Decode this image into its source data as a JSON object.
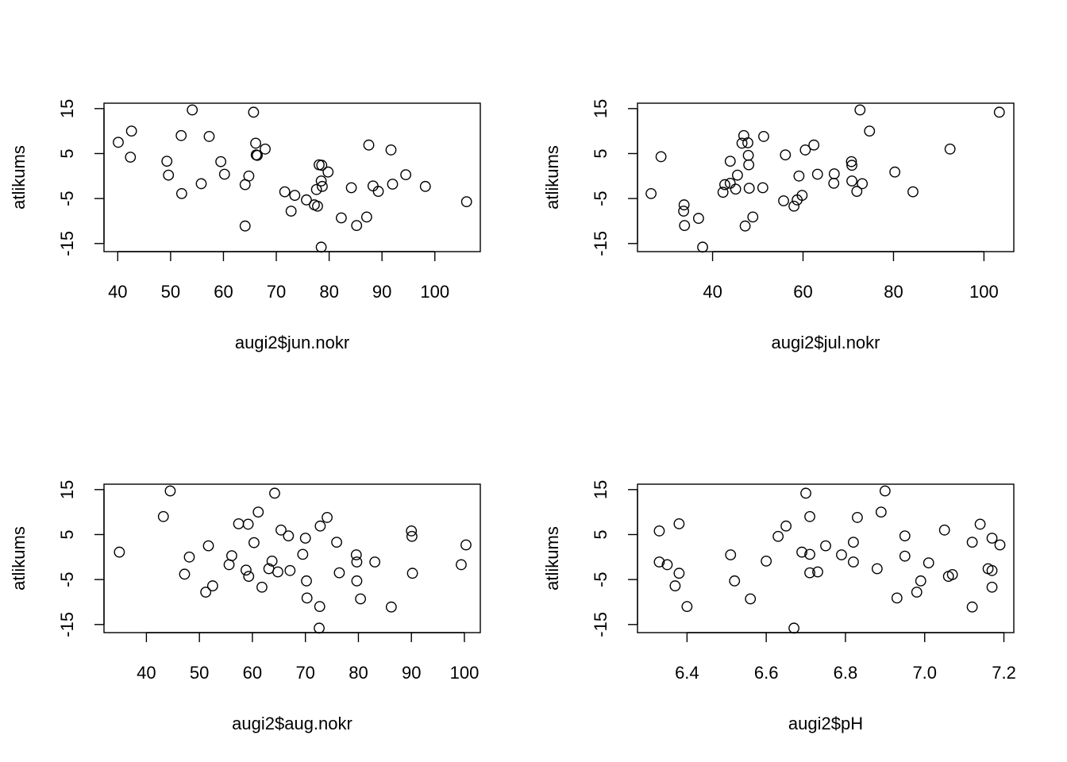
{
  "chart_data": [
    {
      "type": "scatter",
      "xlabel": "augi2$jun.nokr",
      "ylabel": "atlikums",
      "xlim": [
        37.4,
        108.6
      ],
      "ylim": [
        -16.8,
        16.2
      ],
      "x_ticks": [
        40,
        50,
        60,
        70,
        80,
        90,
        100
      ],
      "y_ticks": [
        -15,
        -5,
        5,
        15
      ],
      "points": [
        [
          40.1,
          7.5
        ],
        [
          42.6,
          10.0
        ],
        [
          42.4,
          4.2
        ],
        [
          49.3,
          3.3
        ],
        [
          49.6,
          0.2
        ],
        [
          52.0,
          9.0
        ],
        [
          52.1,
          -3.9
        ],
        [
          54.1,
          14.7
        ],
        [
          55.8,
          -1.7
        ],
        [
          57.3,
          8.8
        ],
        [
          59.5,
          3.2
        ],
        [
          60.2,
          0.4
        ],
        [
          64.1,
          -1.9
        ],
        [
          64.8,
          0.0
        ],
        [
          65.7,
          14.2
        ],
        [
          66.1,
          7.3
        ],
        [
          66.2,
          4.7
        ],
        [
          66.4,
          4.6
        ],
        [
          67.9,
          6.0
        ],
        [
          71.6,
          -3.5
        ],
        [
          72.8,
          -7.8
        ],
        [
          73.5,
          -4.3
        ],
        [
          75.7,
          -5.3
        ],
        [
          77.2,
          -6.4
        ],
        [
          77.6,
          -3.0
        ],
        [
          77.8,
          -6.7
        ],
        [
          78.1,
          2.5
        ],
        [
          78.5,
          -1.1
        ],
        [
          78.6,
          2.4
        ],
        [
          78.7,
          -2.3
        ],
        [
          79.8,
          0.9
        ],
        [
          82.3,
          -9.3
        ],
        [
          84.2,
          -2.6
        ],
        [
          85.2,
          -11.0
        ],
        [
          87.1,
          -9.1
        ],
        [
          87.5,
          6.9
        ],
        [
          88.3,
          -2.2
        ],
        [
          89.3,
          -3.4
        ],
        [
          91.7,
          5.8
        ],
        [
          92.0,
          -1.8
        ],
        [
          94.5,
          0.3
        ],
        [
          98.2,
          -2.3
        ],
        [
          106.0,
          -5.7
        ],
        [
          64.1,
          -11.1
        ],
        [
          78.5,
          -15.8
        ]
      ]
    },
    {
      "type": "scatter",
      "xlabel": "augi2$jul.nokr",
      "ylabel": "atlikums",
      "xlim": [
        23.4,
        106.6
      ],
      "ylim": [
        -16.8,
        16.2
      ],
      "x_ticks": [
        40,
        60,
        80,
        100
      ],
      "y_ticks": [
        -15,
        -5,
        5,
        15
      ],
      "points": [
        [
          26.4,
          -3.9
        ],
        [
          28.6,
          4.3
        ],
        [
          33.6,
          -7.8
        ],
        [
          33.7,
          -6.4
        ],
        [
          33.8,
          -11.0
        ],
        [
          36.9,
          -9.4
        ],
        [
          37.8,
          -15.8
        ],
        [
          42.3,
          -3.6
        ],
        [
          42.7,
          -1.9
        ],
        [
          43.9,
          -1.6
        ],
        [
          43.9,
          3.3
        ],
        [
          45.1,
          -2.9
        ],
        [
          45.5,
          0.2
        ],
        [
          46.5,
          7.3
        ],
        [
          46.9,
          9.0
        ],
        [
          47.2,
          -11.1
        ],
        [
          47.8,
          7.4
        ],
        [
          47.9,
          4.6
        ],
        [
          48.0,
          2.5
        ],
        [
          48.1,
          -2.7
        ],
        [
          48.9,
          -9.1
        ],
        [
          51.1,
          -2.6
        ],
        [
          51.3,
          8.8
        ],
        [
          55.7,
          -5.5
        ],
        [
          56.1,
          4.7
        ],
        [
          58.0,
          -6.7
        ],
        [
          58.7,
          -5.3
        ],
        [
          59.1,
          0.0
        ],
        [
          59.8,
          -4.3
        ],
        [
          60.5,
          5.8
        ],
        [
          62.4,
          6.9
        ],
        [
          63.2,
          0.4
        ],
        [
          66.8,
          -1.6
        ],
        [
          66.9,
          0.5
        ],
        [
          70.7,
          3.2
        ],
        [
          70.8,
          2.4
        ],
        [
          70.8,
          -1.1
        ],
        [
          71.9,
          -3.4
        ],
        [
          72.6,
          14.7
        ],
        [
          73.1,
          -1.7
        ],
        [
          74.7,
          10.0
        ],
        [
          80.3,
          0.9
        ],
        [
          84.3,
          -3.5
        ],
        [
          92.5,
          6.0
        ],
        [
          103.4,
          14.2
        ]
      ]
    },
    {
      "type": "scatter",
      "xlabel": "augi2$aug.nokr",
      "ylabel": "atlikums",
      "xlim": [
        32.0,
        103.0
      ],
      "ylim": [
        -16.8,
        16.2
      ],
      "x_ticks": [
        40,
        50,
        60,
        70,
        80,
        90,
        100
      ],
      "y_ticks": [
        -15,
        -5,
        5,
        15
      ],
      "points": [
        [
          34.9,
          1.1
        ],
        [
          43.2,
          9.0
        ],
        [
          44.5,
          14.7
        ],
        [
          47.2,
          -3.8
        ],
        [
          48.1,
          0.0
        ],
        [
          51.2,
          -7.8
        ],
        [
          51.7,
          2.5
        ],
        [
          52.5,
          -6.4
        ],
        [
          55.6,
          -1.7
        ],
        [
          56.1,
          0.3
        ],
        [
          57.4,
          7.4
        ],
        [
          58.8,
          -2.9
        ],
        [
          59.2,
          7.3
        ],
        [
          59.3,
          -4.3
        ],
        [
          60.3,
          3.2
        ],
        [
          61.1,
          10.0
        ],
        [
          61.8,
          -6.7
        ],
        [
          63.1,
          -2.6
        ],
        [
          63.7,
          -0.9
        ],
        [
          64.2,
          14.2
        ],
        [
          64.8,
          -3.3
        ],
        [
          65.4,
          6.0
        ],
        [
          66.8,
          4.7
        ],
        [
          67.1,
          -3.0
        ],
        [
          69.5,
          0.6
        ],
        [
          70.0,
          4.2
        ],
        [
          70.2,
          -5.3
        ],
        [
          70.3,
          -9.1
        ],
        [
          72.6,
          -15.8
        ],
        [
          72.7,
          -11.0
        ],
        [
          72.8,
          6.9
        ],
        [
          74.1,
          8.8
        ],
        [
          75.9,
          3.3
        ],
        [
          76.4,
          -3.5
        ],
        [
          79.6,
          0.5
        ],
        [
          79.7,
          -1.1
        ],
        [
          79.7,
          -5.3
        ],
        [
          80.4,
          -9.3
        ],
        [
          83.1,
          -1.1
        ],
        [
          86.2,
          -11.1
        ],
        [
          90.0,
          5.8
        ],
        [
          90.1,
          4.6
        ],
        [
          90.2,
          -3.6
        ],
        [
          99.4,
          -1.7
        ],
        [
          100.3,
          2.7
        ]
      ]
    },
    {
      "type": "scatter",
      "xlabel": "augi2$pH",
      "ylabel": "atlikums",
      "xlim": [
        6.275,
        7.225
      ],
      "ylim": [
        -16.8,
        16.2
      ],
      "x_ticks": [
        "6.4",
        "6.6",
        "6.8",
        "7.0",
        "7.2"
      ],
      "y_ticks": [
        -15,
        -5,
        5,
        15
      ],
      "points": [
        [
          6.33,
          5.8
        ],
        [
          6.33,
          -1.1
        ],
        [
          6.35,
          -1.7
        ],
        [
          6.37,
          -6.4
        ],
        [
          6.38,
          7.4
        ],
        [
          6.38,
          -3.6
        ],
        [
          6.4,
          -11.0
        ],
        [
          6.51,
          0.5
        ],
        [
          6.52,
          -5.3
        ],
        [
          6.56,
          -9.3
        ],
        [
          6.6,
          -0.9
        ],
        [
          6.63,
          4.6
        ],
        [
          6.65,
          6.9
        ],
        [
          6.67,
          -15.8
        ],
        [
          6.69,
          1.1
        ],
        [
          6.7,
          14.2
        ],
        [
          6.71,
          9.0
        ],
        [
          6.71,
          0.6
        ],
        [
          6.71,
          -3.5
        ],
        [
          6.73,
          -3.3
        ],
        [
          6.75,
          2.5
        ],
        [
          6.79,
          0.5
        ],
        [
          6.82,
          3.3
        ],
        [
          6.82,
          -1.1
        ],
        [
          6.83,
          8.8
        ],
        [
          6.88,
          -2.6
        ],
        [
          6.89,
          10.0
        ],
        [
          6.9,
          14.7
        ],
        [
          6.93,
          -9.1
        ],
        [
          6.95,
          4.7
        ],
        [
          6.95,
          0.2
        ],
        [
          6.98,
          -7.8
        ],
        [
          6.99,
          -5.3
        ],
        [
          7.01,
          -1.3
        ],
        [
          7.05,
          6.0
        ],
        [
          7.06,
          -4.3
        ],
        [
          7.07,
          -3.9
        ],
        [
          7.12,
          -11.1
        ],
        [
          7.12,
          3.3
        ],
        [
          7.14,
          7.3
        ],
        [
          7.16,
          -2.6
        ],
        [
          7.17,
          4.2
        ],
        [
          7.17,
          -3.0
        ],
        [
          7.17,
          -6.7
        ],
        [
          7.19,
          2.7
        ]
      ]
    }
  ]
}
